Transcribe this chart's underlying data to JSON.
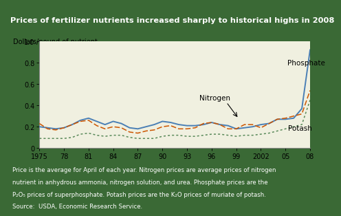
{
  "title": "Prices of fertilizer nutrients increased sharply to historical highs in 2008",
  "ylabel": "Dollars/pound of nutrient",
  "bg_outer": "#3a6935",
  "bg_chart": "#f0f0e0",
  "title_color": "#ffffff",
  "footer_line1": "Price is the average for April of each year. Nitrogen prices are average prices of nitrogen",
  "footer_line2": "nutrient in anhydrous ammonia, nitrogen solution, and urea. Phosphate prices are the",
  "footer_line3": "P₂O₅ prices of superphosphate. Potash prices are the K₂O prices of muriate of potash.",
  "footer_line4": "Source:  USDA, Economic Research Service.",
  "years": [
    1975,
    1976,
    1977,
    1978,
    1979,
    1980,
    1981,
    1982,
    1983,
    1984,
    1985,
    1986,
    1987,
    1988,
    1989,
    1990,
    1991,
    1992,
    1993,
    1994,
    1995,
    1996,
    1997,
    1998,
    1999,
    2000,
    2001,
    2002,
    2003,
    2004,
    2005,
    2006,
    2007,
    2008
  ],
  "phosphate": [
    0.2,
    0.19,
    0.18,
    0.19,
    0.22,
    0.26,
    0.28,
    0.25,
    0.22,
    0.25,
    0.23,
    0.19,
    0.18,
    0.2,
    0.22,
    0.25,
    0.24,
    0.22,
    0.21,
    0.21,
    0.22,
    0.24,
    0.22,
    0.21,
    0.18,
    0.19,
    0.2,
    0.22,
    0.23,
    0.27,
    0.27,
    0.28,
    0.37,
    0.92
  ],
  "nitrogen": [
    0.23,
    0.18,
    0.17,
    0.19,
    0.22,
    0.25,
    0.26,
    0.21,
    0.18,
    0.2,
    0.19,
    0.15,
    0.14,
    0.16,
    0.17,
    0.2,
    0.21,
    0.18,
    0.18,
    0.19,
    0.23,
    0.24,
    0.22,
    0.18,
    0.18,
    0.22,
    0.22,
    0.19,
    0.23,
    0.27,
    0.28,
    0.3,
    0.32,
    0.54
  ],
  "potash": [
    0.09,
    0.09,
    0.09,
    0.09,
    0.1,
    0.13,
    0.14,
    0.12,
    0.11,
    0.12,
    0.12,
    0.1,
    0.09,
    0.09,
    0.09,
    0.11,
    0.12,
    0.12,
    0.11,
    0.11,
    0.12,
    0.13,
    0.13,
    0.12,
    0.11,
    0.12,
    0.12,
    0.13,
    0.14,
    0.16,
    0.18,
    0.2,
    0.22,
    0.45
  ],
  "phosphate_color": "#4a7fb5",
  "nitrogen_color": "#cc5500",
  "potash_color": "#5a8a5a",
  "ylim": [
    0,
    1.0
  ],
  "yticks": [
    0,
    0.2,
    0.4,
    0.6,
    0.8,
    1.0
  ],
  "xticks": [
    1975,
    1978,
    1981,
    1984,
    1987,
    1990,
    1993,
    1996,
    1999,
    2002,
    2005,
    2008
  ],
  "xticklabels": [
    "1975",
    "78",
    "81",
    "84",
    "87",
    "90",
    "93",
    "96",
    "99",
    "2002",
    "05",
    "08"
  ]
}
